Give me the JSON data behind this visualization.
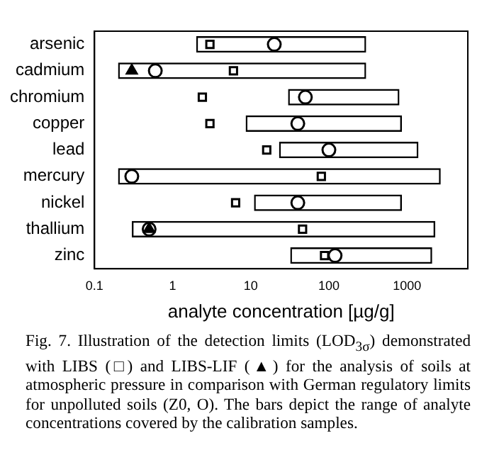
{
  "chart_data": {
    "type": "bar",
    "orientation": "horizontal",
    "xlabel": "analyte concentration [µg/g]",
    "categories": [
      "arsenic",
      "cadmium",
      "chromium",
      "copper",
      "lead",
      "mercury",
      "nickel",
      "thallium",
      "zinc"
    ],
    "base": [
      2,
      0.2,
      30,
      8.6,
      23,
      0.2,
      11,
      0.3,
      32
    ],
    "values": [
      298,
      299.8,
      770,
      851.4,
      1377,
      2700,
      849,
      2300,
      2068
    ],
    "color": "#000000",
    "series": [
      {
        "type": "scatter",
        "marker": "square",
        "color": "#ffffff",
        "values": [
          3,
          6,
          2.4,
          3,
          16,
          80,
          6.4,
          46,
          88
        ]
      },
      {
        "type": "scatter",
        "marker": "triangle",
        "color": "#000000",
        "values": [
          null,
          0.3,
          null,
          null,
          null,
          null,
          null,
          0.5,
          null
        ]
      },
      {
        "type": "scatter",
        "marker": "circle",
        "color": "#ffffff",
        "values": [
          20,
          0.6,
          50,
          40,
          100,
          0.3,
          40,
          0.5,
          120
        ]
      }
    ],
    "log": "x",
    "xlim": [
      0.1,
      6000
    ],
    "xticks": [
      0.1,
      1,
      10,
      100,
      1000
    ],
    "grid": false,
    "legend": false,
    "annotations": [
      "Fig. 7. Illustration of the detection limits (LOD$_{3σ}$) demonstrated with LIBS (□) and LIBS-LIF (▲) for the analysis of soils at atmospheric pressure in comparison with German regulatory limits for unpolluted soils (Z0, O). The bars depict the range of analyte concentrations covered by the calibration samples."
    ]
  }
}
